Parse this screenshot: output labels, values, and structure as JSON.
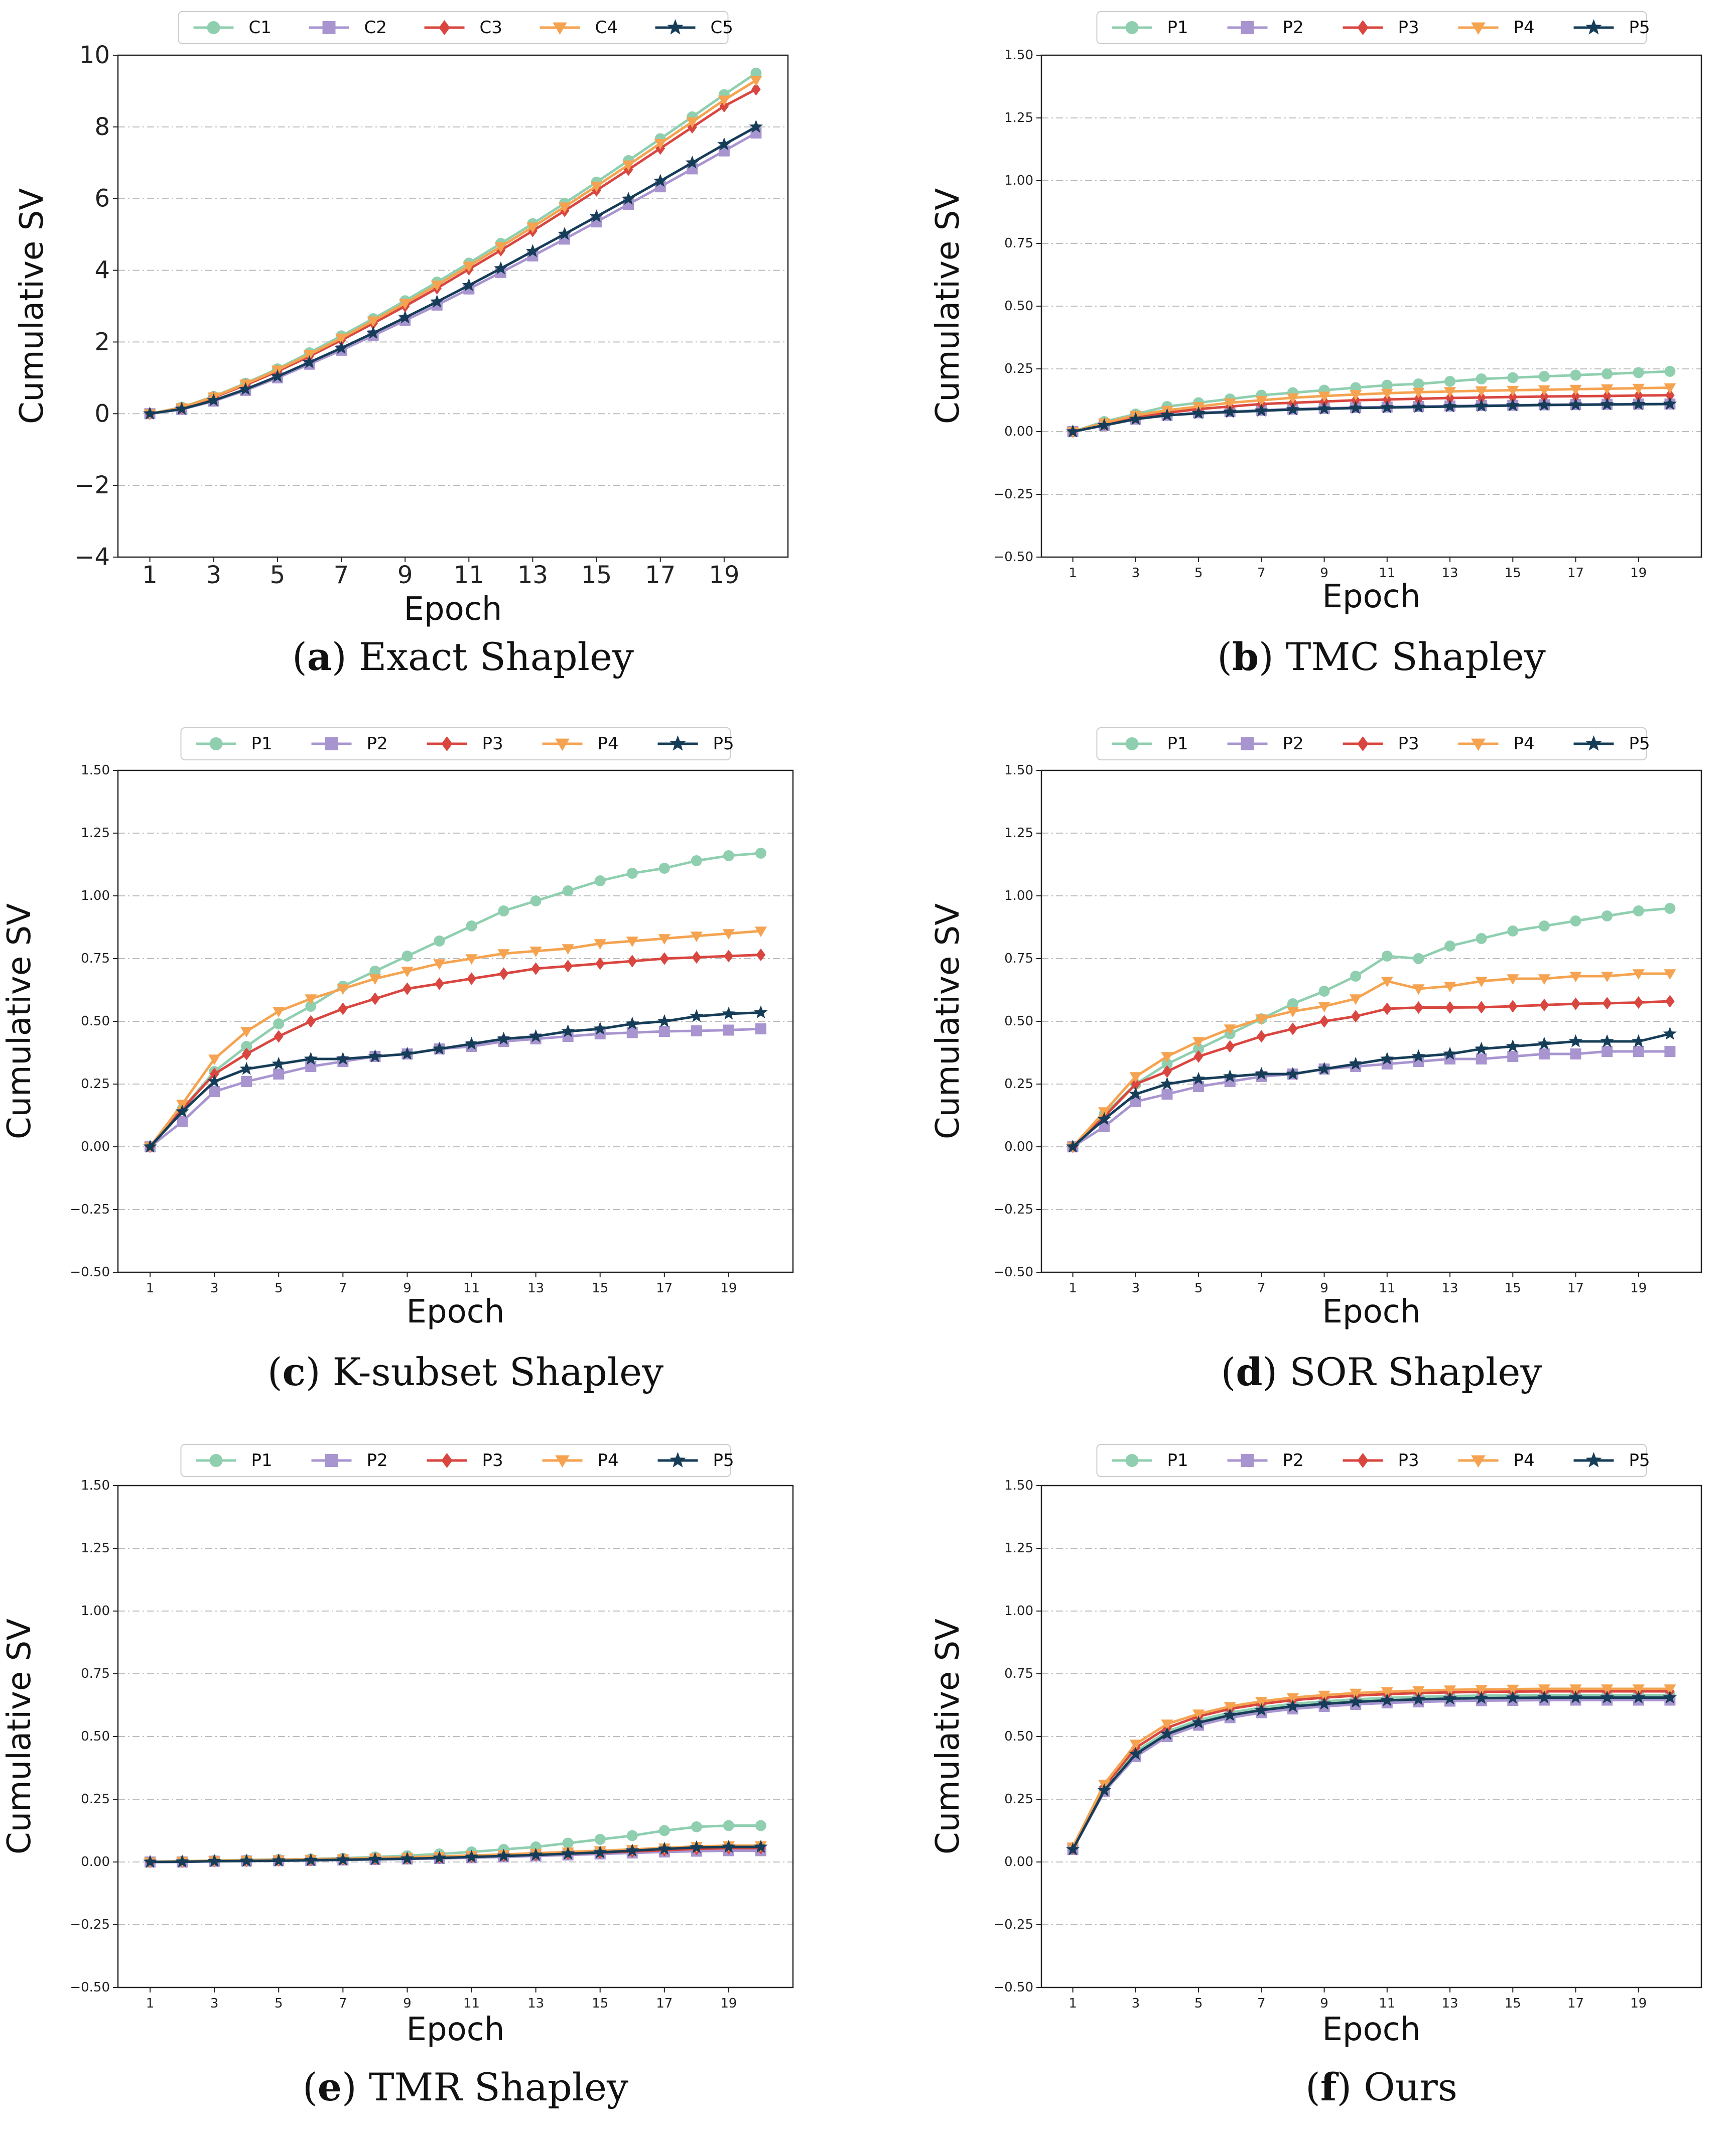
{
  "figure": {
    "colors": {
      "s1": "#8fcfb0",
      "s2": "#a895d0",
      "s3": "#d9463f",
      "s4": "#f5a350",
      "s5": "#163d58",
      "grid": "#bdbdbd",
      "axis": "#222222"
    },
    "marker_names": [
      "circle-marker",
      "square-marker",
      "diamond-marker",
      "triangle-down-marker",
      "star-marker"
    ]
  },
  "chart_data": [
    {
      "type": "line",
      "caption_letter": "a",
      "caption_text": "Exact Shapley",
      "xlabel": "Epoch",
      "ylabel": "Cumulative SV",
      "x": [
        1,
        2,
        3,
        4,
        5,
        6,
        7,
        8,
        9,
        10,
        11,
        12,
        13,
        14,
        15,
        16,
        17,
        18,
        19,
        20
      ],
      "xticks": [
        1,
        3,
        5,
        7,
        9,
        11,
        13,
        15,
        17,
        19
      ],
      "ylim": [
        -4,
        10
      ],
      "yticks": [
        -4,
        -2,
        0,
        2,
        4,
        6,
        8,
        10
      ],
      "ytick_labels": [
        "−4",
        "−2",
        "0",
        "2",
        "4",
        "6",
        "8",
        "10"
      ],
      "grid": "horizontal dash-dot",
      "legend": "top-center",
      "series": [
        {
          "name": "C1",
          "values": [
            0,
            0.18,
            0.48,
            0.85,
            1.25,
            1.7,
            2.17,
            2.65,
            3.15,
            3.67,
            4.2,
            4.75,
            5.3,
            5.87,
            6.46,
            7.06,
            7.67,
            8.28,
            8.9,
            9.5
          ]
        },
        {
          "name": "C2",
          "values": [
            0,
            0.12,
            0.35,
            0.65,
            1.0,
            1.38,
            1.77,
            2.18,
            2.6,
            3.03,
            3.48,
            3.94,
            4.4,
            4.87,
            5.35,
            5.84,
            6.33,
            6.83,
            7.33,
            7.83
          ]
        },
        {
          "name": "C3",
          "values": [
            0,
            0.16,
            0.45,
            0.8,
            1.18,
            1.6,
            2.05,
            2.52,
            3.0,
            3.5,
            4.03,
            4.56,
            5.1,
            5.66,
            6.23,
            6.81,
            7.4,
            7.99,
            8.58,
            9.05
          ]
        },
        {
          "name": "C4",
          "values": [
            0,
            0.17,
            0.47,
            0.83,
            1.22,
            1.65,
            2.11,
            2.59,
            3.08,
            3.59,
            4.12,
            4.66,
            5.21,
            5.77,
            6.35,
            6.94,
            7.54,
            8.14,
            8.75,
            9.3
          ]
        },
        {
          "name": "C5",
          "values": [
            0,
            0.13,
            0.37,
            0.68,
            1.04,
            1.43,
            1.83,
            2.25,
            2.68,
            3.12,
            3.58,
            4.05,
            4.53,
            5.01,
            5.5,
            5.99,
            6.49,
            7.0,
            7.51,
            8.0
          ]
        }
      ]
    },
    {
      "type": "line",
      "caption_letter": "b",
      "caption_text": "TMC Shapley",
      "xlabel": "Epoch",
      "ylabel": "Cumulative SV",
      "x": [
        1,
        2,
        3,
        4,
        5,
        6,
        7,
        8,
        9,
        10,
        11,
        12,
        13,
        14,
        15,
        16,
        17,
        18,
        19,
        20
      ],
      "xticks": [
        1,
        3,
        5,
        7,
        9,
        11,
        13,
        15,
        17,
        19
      ],
      "ylim": [
        -0.5,
        1.5
      ],
      "yticks": [
        -0.5,
        -0.25,
        0,
        0.25,
        0.5,
        0.75,
        1,
        1.25,
        1.5
      ],
      "ytick_labels": [
        "−0.50",
        "−0.25",
        "0.00",
        "0.25",
        "0.50",
        "0.75",
        "1.00",
        "1.25",
        "1.50"
      ],
      "grid": "horizontal dash-dot",
      "legend": "top-center",
      "series": [
        {
          "name": "P1",
          "values": [
            0,
            0.04,
            0.07,
            0.1,
            0.115,
            0.13,
            0.145,
            0.155,
            0.165,
            0.175,
            0.185,
            0.19,
            0.2,
            0.21,
            0.215,
            0.22,
            0.225,
            0.23,
            0.235,
            0.24
          ]
        },
        {
          "name": "P2",
          "values": [
            0,
            0.025,
            0.05,
            0.065,
            0.075,
            0.08,
            0.085,
            0.09,
            0.093,
            0.096,
            0.098,
            0.1,
            0.102,
            0.104,
            0.105,
            0.107,
            0.108,
            0.109,
            0.11,
            0.11
          ]
        },
        {
          "name": "P3",
          "values": [
            0,
            0.03,
            0.06,
            0.075,
            0.09,
            0.1,
            0.11,
            0.115,
            0.12,
            0.125,
            0.128,
            0.131,
            0.134,
            0.136,
            0.138,
            0.14,
            0.141,
            0.142,
            0.144,
            0.145
          ]
        },
        {
          "name": "P4",
          "values": [
            0,
            0.035,
            0.065,
            0.085,
            0.1,
            0.115,
            0.125,
            0.135,
            0.142,
            0.148,
            0.153,
            0.157,
            0.16,
            0.163,
            0.165,
            0.167,
            0.169,
            0.171,
            0.173,
            0.175
          ]
        },
        {
          "name": "P5",
          "values": [
            0,
            0.025,
            0.05,
            0.065,
            0.073,
            0.078,
            0.083,
            0.088,
            0.091,
            0.094,
            0.096,
            0.098,
            0.1,
            0.102,
            0.104,
            0.106,
            0.107,
            0.108,
            0.109,
            0.11
          ]
        }
      ]
    },
    {
      "type": "line",
      "caption_letter": "c",
      "caption_text": "K-subset Shapley",
      "xlabel": "Epoch",
      "ylabel": "Cumulative SV",
      "x": [
        1,
        2,
        3,
        4,
        5,
        6,
        7,
        8,
        9,
        10,
        11,
        12,
        13,
        14,
        15,
        16,
        17,
        18,
        19,
        20
      ],
      "xticks": [
        1,
        3,
        5,
        7,
        9,
        11,
        13,
        15,
        17,
        19
      ],
      "ylim": [
        -0.5,
        1.5
      ],
      "yticks": [
        -0.5,
        -0.25,
        0,
        0.25,
        0.5,
        0.75,
        1,
        1.25,
        1.5
      ],
      "ytick_labels": [
        "−0.50",
        "−0.25",
        "0.00",
        "0.25",
        "0.50",
        "0.75",
        "1.00",
        "1.25",
        "1.50"
      ],
      "grid": "horizontal dash-dot",
      "legend": "top-center",
      "series": [
        {
          "name": "P1",
          "values": [
            0,
            0.15,
            0.3,
            0.4,
            0.49,
            0.56,
            0.64,
            0.7,
            0.76,
            0.82,
            0.88,
            0.94,
            0.98,
            1.02,
            1.06,
            1.09,
            1.11,
            1.14,
            1.16,
            1.17
          ]
        },
        {
          "name": "P2",
          "values": [
            0,
            0.1,
            0.22,
            0.26,
            0.29,
            0.32,
            0.34,
            0.36,
            0.37,
            0.39,
            0.4,
            0.42,
            0.43,
            0.44,
            0.45,
            0.455,
            0.46,
            0.462,
            0.465,
            0.47
          ]
        },
        {
          "name": "P3",
          "values": [
            0,
            0.15,
            0.29,
            0.37,
            0.44,
            0.5,
            0.55,
            0.59,
            0.63,
            0.65,
            0.67,
            0.69,
            0.71,
            0.72,
            0.73,
            0.74,
            0.75,
            0.755,
            0.76,
            0.765
          ]
        },
        {
          "name": "P4",
          "values": [
            0,
            0.17,
            0.35,
            0.46,
            0.54,
            0.59,
            0.63,
            0.67,
            0.7,
            0.73,
            0.75,
            0.77,
            0.78,
            0.79,
            0.81,
            0.82,
            0.83,
            0.84,
            0.85,
            0.86
          ]
        },
        {
          "name": "P5",
          "values": [
            0,
            0.14,
            0.26,
            0.31,
            0.33,
            0.35,
            0.35,
            0.36,
            0.37,
            0.39,
            0.41,
            0.43,
            0.44,
            0.46,
            0.47,
            0.49,
            0.5,
            0.52,
            0.53,
            0.535
          ]
        }
      ]
    },
    {
      "type": "line",
      "caption_letter": "d",
      "caption_text": "SOR Shapley",
      "xlabel": "Epoch",
      "ylabel": "Cumulative SV",
      "x": [
        1,
        2,
        3,
        4,
        5,
        6,
        7,
        8,
        9,
        10,
        11,
        12,
        13,
        14,
        15,
        16,
        17,
        18,
        19,
        20
      ],
      "xticks": [
        1,
        3,
        5,
        7,
        9,
        11,
        13,
        15,
        17,
        19
      ],
      "ylim": [
        -0.5,
        1.5
      ],
      "yticks": [
        -0.5,
        -0.25,
        0,
        0.25,
        0.5,
        0.75,
        1,
        1.25,
        1.5
      ],
      "ytick_labels": [
        "−0.50",
        "−0.25",
        "0.00",
        "0.25",
        "0.50",
        "0.75",
        "1.00",
        "1.25",
        "1.50"
      ],
      "grid": "horizontal dash-dot",
      "legend": "top-center",
      "series": [
        {
          "name": "P1",
          "values": [
            0,
            0.13,
            0.25,
            0.33,
            0.39,
            0.45,
            0.51,
            0.57,
            0.62,
            0.68,
            0.76,
            0.75,
            0.8,
            0.83,
            0.86,
            0.88,
            0.9,
            0.92,
            0.94,
            0.95
          ]
        },
        {
          "name": "P2",
          "values": [
            0,
            0.08,
            0.18,
            0.21,
            0.24,
            0.26,
            0.28,
            0.29,
            0.31,
            0.32,
            0.33,
            0.34,
            0.35,
            0.35,
            0.36,
            0.37,
            0.37,
            0.38,
            0.38,
            0.38
          ]
        },
        {
          "name": "P3",
          "values": [
            0,
            0.12,
            0.25,
            0.3,
            0.36,
            0.4,
            0.44,
            0.47,
            0.5,
            0.52,
            0.55,
            0.555,
            0.555,
            0.556,
            0.56,
            0.565,
            0.57,
            0.572,
            0.575,
            0.58
          ]
        },
        {
          "name": "P4",
          "values": [
            0,
            0.14,
            0.28,
            0.36,
            0.42,
            0.47,
            0.51,
            0.54,
            0.56,
            0.59,
            0.66,
            0.63,
            0.64,
            0.66,
            0.67,
            0.67,
            0.68,
            0.68,
            0.69,
            0.69
          ]
        },
        {
          "name": "P5",
          "values": [
            0,
            0.11,
            0.21,
            0.25,
            0.27,
            0.28,
            0.29,
            0.29,
            0.31,
            0.33,
            0.35,
            0.36,
            0.37,
            0.39,
            0.4,
            0.41,
            0.42,
            0.42,
            0.42,
            0.45
          ]
        }
      ]
    },
    {
      "type": "line",
      "caption_letter": "e",
      "caption_text": "TMR Shapley",
      "xlabel": "Epoch",
      "ylabel": "Cumulative SV",
      "x": [
        1,
        2,
        3,
        4,
        5,
        6,
        7,
        8,
        9,
        10,
        11,
        12,
        13,
        14,
        15,
        16,
        17,
        18,
        19,
        20
      ],
      "xticks": [
        1,
        3,
        5,
        7,
        9,
        11,
        13,
        15,
        17,
        19
      ],
      "ylim": [
        -0.5,
        1.5
      ],
      "yticks": [
        -0.5,
        -0.25,
        0,
        0.25,
        0.5,
        0.75,
        1,
        1.25,
        1.5
      ],
      "ytick_labels": [
        "−0.50",
        "−0.25",
        "0.00",
        "0.25",
        "0.50",
        "0.75",
        "1.00",
        "1.25",
        "1.50"
      ],
      "grid": "horizontal dash-dot",
      "legend": "top-center",
      "series": [
        {
          "name": "P1",
          "values": [
            0,
            0.003,
            0.006,
            0.008,
            0.01,
            0.012,
            0.015,
            0.02,
            0.025,
            0.032,
            0.04,
            0.05,
            0.06,
            0.075,
            0.09,
            0.105,
            0.125,
            0.14,
            0.145,
            0.145
          ]
        },
        {
          "name": "P2",
          "values": [
            0,
            0,
            0.003,
            0.004,
            0.005,
            0.006,
            0.008,
            0.01,
            0.012,
            0.014,
            0.017,
            0.02,
            0.024,
            0.028,
            0.032,
            0.036,
            0.04,
            0.043,
            0.045,
            0.045
          ]
        },
        {
          "name": "P3",
          "values": [
            0,
            0.002,
            0.004,
            0.005,
            0.007,
            0.009,
            0.011,
            0.013,
            0.015,
            0.018,
            0.021,
            0.025,
            0.029,
            0.033,
            0.037,
            0.042,
            0.047,
            0.052,
            0.055,
            0.055
          ]
        },
        {
          "name": "P4",
          "values": [
            0,
            0.003,
            0.005,
            0.007,
            0.009,
            0.011,
            0.013,
            0.016,
            0.019,
            0.022,
            0.026,
            0.03,
            0.035,
            0.04,
            0.045,
            0.05,
            0.056,
            0.062,
            0.065,
            0.065
          ]
        },
        {
          "name": "P5",
          "values": [
            0,
            0.001,
            0.003,
            0.004,
            0.005,
            0.007,
            0.009,
            0.011,
            0.013,
            0.016,
            0.02,
            0.024,
            0.028,
            0.033,
            0.038,
            0.045,
            0.052,
            0.058,
            0.06,
            0.06
          ]
        }
      ]
    },
    {
      "type": "line",
      "caption_letter": "f",
      "caption_text": "Ours",
      "xlabel": "Epoch",
      "ylabel": "Cumulative SV",
      "x": [
        1,
        2,
        3,
        4,
        5,
        6,
        7,
        8,
        9,
        10,
        11,
        12,
        13,
        14,
        15,
        16,
        17,
        18,
        19,
        20
      ],
      "xticks": [
        1,
        3,
        5,
        7,
        9,
        11,
        13,
        15,
        17,
        19
      ],
      "ylim": [
        -0.5,
        1.5
      ],
      "yticks": [
        -0.5,
        -0.25,
        0,
        0.25,
        0.5,
        0.75,
        1,
        1.25,
        1.5
      ],
      "ytick_labels": [
        "−0.50",
        "−0.25",
        "0.00",
        "0.25",
        "0.50",
        "0.75",
        "1.00",
        "1.25",
        "1.50"
      ],
      "grid": "horizontal dash-dot",
      "legend": "top-center",
      "series": [
        {
          "name": "P1",
          "values": [
            0.05,
            0.29,
            0.44,
            0.52,
            0.565,
            0.595,
            0.615,
            0.63,
            0.64,
            0.648,
            0.654,
            0.658,
            0.661,
            0.663,
            0.664,
            0.665,
            0.665,
            0.665,
            0.665,
            0.665
          ]
        },
        {
          "name": "P2",
          "values": [
            0.05,
            0.28,
            0.42,
            0.5,
            0.545,
            0.575,
            0.595,
            0.61,
            0.62,
            0.628,
            0.634,
            0.638,
            0.641,
            0.643,
            0.644,
            0.645,
            0.645,
            0.645,
            0.645,
            0.645
          ]
        },
        {
          "name": "P3",
          "values": [
            0.055,
            0.3,
            0.455,
            0.535,
            0.58,
            0.61,
            0.63,
            0.645,
            0.655,
            0.663,
            0.669,
            0.673,
            0.676,
            0.678,
            0.679,
            0.68,
            0.68,
            0.68,
            0.68,
            0.68
          ]
        },
        {
          "name": "P4",
          "values": [
            0.06,
            0.31,
            0.47,
            0.55,
            0.59,
            0.62,
            0.64,
            0.655,
            0.665,
            0.673,
            0.679,
            0.683,
            0.686,
            0.688,
            0.689,
            0.69,
            0.69,
            0.69,
            0.69,
            0.69
          ]
        },
        {
          "name": "P5",
          "values": [
            0.05,
            0.285,
            0.43,
            0.51,
            0.555,
            0.585,
            0.605,
            0.62,
            0.63,
            0.638,
            0.644,
            0.648,
            0.651,
            0.653,
            0.654,
            0.655,
            0.655,
            0.655,
            0.655,
            0.655
          ]
        }
      ]
    }
  ]
}
